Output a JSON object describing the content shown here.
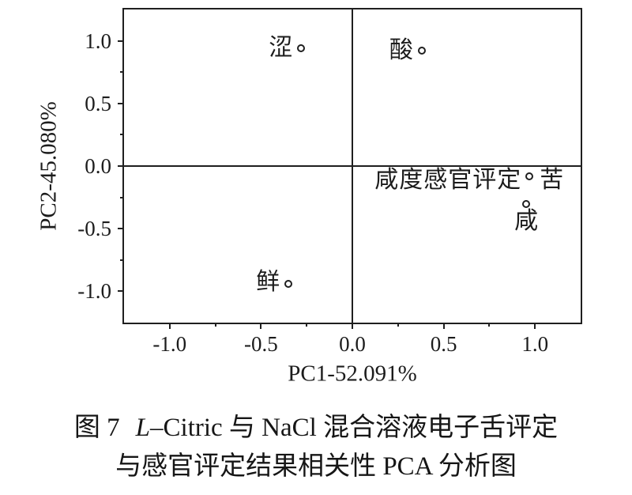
{
  "figure": {
    "caption": {
      "fig_label": "图 7",
      "title_italic": "L",
      "title_rest": "–Citric 与 NaCl 混合溶液电子舌评定",
      "line2": "与感官评定结果相关性 PCA 分析图"
    }
  },
  "chart_data": {
    "type": "scatter",
    "title": "",
    "xlabel": "PC1-52.091%",
    "ylabel": "PC2-45.080%",
    "xlim": [
      -1.25,
      1.25
    ],
    "ylim": [
      -1.25,
      1.25
    ],
    "grid": false,
    "zero_lines": true,
    "legend": "none",
    "marker": "open-circle",
    "colors": {
      "background": "#ffffff",
      "axis": "#1f1f1f",
      "text": "#1c1c1c",
      "marker_stroke": "#1f1f1f"
    },
    "xticks": {
      "values": [
        -1.0,
        -0.5,
        0.0,
        0.5,
        1.0
      ],
      "labels": [
        "-1.0",
        "-0.5",
        "0.0",
        "0.5",
        "1.0"
      ],
      "minor": [
        -0.75,
        -0.25,
        0.25,
        0.75
      ]
    },
    "yticks": {
      "values": [
        1.0,
        0.5,
        0.0,
        -0.5,
        -1.0
      ],
      "labels": [
        "1.0",
        "0.5",
        "0.0",
        "-0.5",
        "-1.0"
      ],
      "minor": [
        0.75,
        0.25,
        -0.25,
        -0.75
      ]
    },
    "points": [
      {
        "x": -0.28,
        "y": 0.94,
        "labels": [
          {
            "text": "涩",
            "side": "left"
          }
        ]
      },
      {
        "x": 0.38,
        "y": 0.92,
        "labels": [
          {
            "text": "酸",
            "side": "left"
          }
        ]
      },
      {
        "x": 0.97,
        "y": -0.08,
        "labels": [
          {
            "text": "咸度感官评定",
            "side": "left",
            "dy": 5
          },
          {
            "text": "苦",
            "side": "right",
            "dy": 5
          }
        ]
      },
      {
        "x": 0.95,
        "y": -0.3,
        "labels": [
          {
            "text": "咸",
            "side": "below"
          }
        ]
      },
      {
        "x": -0.35,
        "y": -0.94,
        "labels": [
          {
            "text": "鲜",
            "side": "left",
            "dy": -2
          }
        ]
      }
    ]
  }
}
